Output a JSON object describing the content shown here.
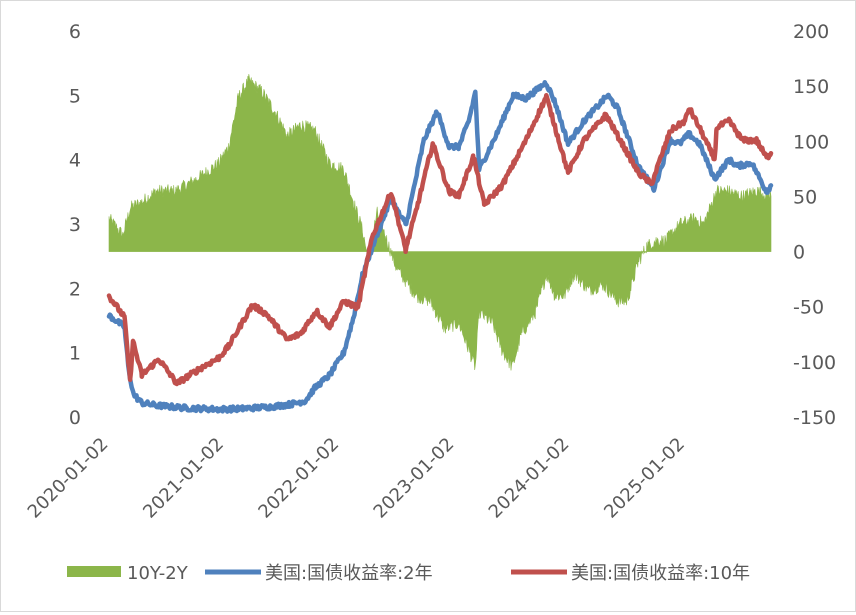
{
  "chart_data": {
    "type": "line",
    "x_ticks": [
      "2020-01-02",
      "2021-01-02",
      "2022-01-02",
      "2023-01-02",
      "2024-01-02",
      "2025-01-02"
    ],
    "x_range": [
      "2020-01-02",
      "2025-09-30"
    ],
    "y_left": {
      "min": 0,
      "max": 6,
      "ticks": [
        "0",
        "1",
        "2",
        "3",
        "4",
        "5",
        "6"
      ]
    },
    "y_right": {
      "min": -150,
      "max": 200,
      "ticks": [
        "-150",
        "-100",
        "-50",
        "0",
        "50",
        "100",
        "150",
        "200"
      ]
    },
    "grid": false,
    "legend_position": "bottom",
    "series": [
      {
        "name": "10Y-2Y",
        "type": "area",
        "axis": "right",
        "color": "#8cb64a",
        "points": [
          [
            "2020-01-02",
            30
          ],
          [
            "2020-02-15",
            15
          ],
          [
            "2020-03-10",
            40
          ],
          [
            "2020-04-15",
            45
          ],
          [
            "2020-06-01",
            55
          ],
          [
            "2020-08-01",
            55
          ],
          [
            "2020-10-01",
            65
          ],
          [
            "2020-12-15",
            80
          ],
          [
            "2021-01-15",
            95
          ],
          [
            "2021-02-15",
            140
          ],
          [
            "2021-03-20",
            155
          ],
          [
            "2021-05-01",
            145
          ],
          [
            "2021-06-15",
            125
          ],
          [
            "2021-07-20",
            105
          ],
          [
            "2021-09-01",
            115
          ],
          [
            "2021-10-15",
            110
          ],
          [
            "2021-12-01",
            80
          ],
          [
            "2022-01-15",
            75
          ],
          [
            "2022-02-15",
            45
          ],
          [
            "2022-03-15",
            20
          ],
          [
            "2022-04-01",
            -5
          ],
          [
            "2022-05-01",
            35
          ],
          [
            "2022-06-01",
            10
          ],
          [
            "2022-07-01",
            -15
          ],
          [
            "2022-09-01",
            -40
          ],
          [
            "2022-10-15",
            -45
          ],
          [
            "2022-12-01",
            -70
          ],
          [
            "2023-01-15",
            -65
          ],
          [
            "2023-03-08",
            -105
          ],
          [
            "2023-03-20",
            -55
          ],
          [
            "2023-05-01",
            -65
          ],
          [
            "2023-06-01",
            -90
          ],
          [
            "2023-07-03",
            -105
          ],
          [
            "2023-08-01",
            -75
          ],
          [
            "2023-09-15",
            -55
          ],
          [
            "2023-10-20",
            -20
          ],
          [
            "2023-11-15",
            -40
          ],
          [
            "2023-12-15",
            -40
          ],
          [
            "2024-01-15",
            -20
          ],
          [
            "2024-03-01",
            -35
          ],
          [
            "2024-04-15",
            -30
          ],
          [
            "2024-06-01",
            -45
          ],
          [
            "2024-07-01",
            -45
          ],
          [
            "2024-08-05",
            -10
          ],
          [
            "2024-09-01",
            5
          ],
          [
            "2024-10-01",
            10
          ],
          [
            "2024-11-01",
            10
          ],
          [
            "2024-12-15",
            25
          ],
          [
            "2025-02-01",
            30
          ],
          [
            "2025-03-01",
            25
          ],
          [
            "2025-04-10",
            55
          ],
          [
            "2025-05-15",
            55
          ],
          [
            "2025-07-01",
            50
          ],
          [
            "2025-08-15",
            55
          ],
          [
            "2025-09-30",
            50
          ]
        ]
      },
      {
        "name": "美国:国债收益率:2年",
        "type": "line",
        "axis": "left",
        "color": "#4f81bd",
        "points": [
          [
            "2020-01-02",
            1.58
          ],
          [
            "2020-02-20",
            1.4
          ],
          [
            "2020-03-05",
            0.7
          ],
          [
            "2020-03-20",
            0.35
          ],
          [
            "2020-04-15",
            0.22
          ],
          [
            "2020-06-01",
            0.18
          ],
          [
            "2020-09-01",
            0.14
          ],
          [
            "2020-12-15",
            0.12
          ],
          [
            "2021-03-01",
            0.13
          ],
          [
            "2021-06-01",
            0.16
          ],
          [
            "2021-08-01",
            0.2
          ],
          [
            "2021-09-15",
            0.25
          ],
          [
            "2021-10-15",
            0.45
          ],
          [
            "2021-12-01",
            0.65
          ],
          [
            "2022-01-15",
            1.0
          ],
          [
            "2022-02-15",
            1.55
          ],
          [
            "2022-03-15",
            2.2
          ],
          [
            "2022-04-20",
            2.7
          ],
          [
            "2022-06-14",
            3.4
          ],
          [
            "2022-07-15",
            3.1
          ],
          [
            "2022-08-01",
            3.0
          ],
          [
            "2022-09-26",
            4.3
          ],
          [
            "2022-11-07",
            4.75
          ],
          [
            "2022-12-15",
            4.2
          ],
          [
            "2023-01-15",
            4.2
          ],
          [
            "2023-02-15",
            4.6
          ],
          [
            "2023-03-08",
            5.05
          ],
          [
            "2023-03-20",
            3.85
          ],
          [
            "2023-04-15",
            4.1
          ],
          [
            "2023-05-15",
            4.4
          ],
          [
            "2023-07-06",
            5.0
          ],
          [
            "2023-08-15",
            4.95
          ],
          [
            "2023-10-18",
            5.2
          ],
          [
            "2023-11-15",
            4.9
          ],
          [
            "2023-12-27",
            4.25
          ],
          [
            "2024-02-15",
            4.6
          ],
          [
            "2024-04-30",
            5.0
          ],
          [
            "2024-06-01",
            4.8
          ],
          [
            "2024-08-05",
            3.9
          ],
          [
            "2024-09-24",
            3.55
          ],
          [
            "2024-11-15",
            4.3
          ],
          [
            "2024-12-15",
            4.25
          ],
          [
            "2025-01-13",
            4.4
          ],
          [
            "2025-02-15",
            4.25
          ],
          [
            "2025-04-04",
            3.7
          ],
          [
            "2025-05-20",
            4.0
          ],
          [
            "2025-06-15",
            3.9
          ],
          [
            "2025-07-31",
            3.95
          ],
          [
            "2025-09-16",
            3.5
          ],
          [
            "2025-09-30",
            3.6
          ]
        ]
      },
      {
        "name": "美国:国债收益率:10年",
        "type": "line",
        "axis": "left",
        "color": "#c0504d",
        "points": [
          [
            "2020-01-02",
            1.88
          ],
          [
            "2020-02-20",
            1.55
          ],
          [
            "2020-03-09",
            0.55
          ],
          [
            "2020-03-18",
            1.18
          ],
          [
            "2020-04-15",
            0.65
          ],
          [
            "2020-06-08",
            0.9
          ],
          [
            "2020-08-04",
            0.52
          ],
          [
            "2020-10-15",
            0.75
          ],
          [
            "2020-12-15",
            0.92
          ],
          [
            "2021-01-15",
            1.1
          ],
          [
            "2021-03-31",
            1.74
          ],
          [
            "2021-05-15",
            1.6
          ],
          [
            "2021-07-20",
            1.2
          ],
          [
            "2021-09-01",
            1.3
          ],
          [
            "2021-10-20",
            1.65
          ],
          [
            "2021-12-01",
            1.4
          ],
          [
            "2022-01-15",
            1.8
          ],
          [
            "2022-03-01",
            1.7
          ],
          [
            "2022-04-15",
            2.8
          ],
          [
            "2022-06-14",
            3.5
          ],
          [
            "2022-07-30",
            2.6
          ],
          [
            "2022-09-01",
            3.2
          ],
          [
            "2022-10-24",
            4.25
          ],
          [
            "2022-12-15",
            3.5
          ],
          [
            "2023-01-15",
            3.45
          ],
          [
            "2023-03-02",
            4.05
          ],
          [
            "2023-04-05",
            3.3
          ],
          [
            "2023-06-01",
            3.6
          ],
          [
            "2023-08-15",
            4.3
          ],
          [
            "2023-10-19",
            4.98
          ],
          [
            "2023-12-27",
            3.8
          ],
          [
            "2024-02-15",
            4.3
          ],
          [
            "2024-04-25",
            4.7
          ],
          [
            "2024-06-15",
            4.25
          ],
          [
            "2024-08-05",
            3.8
          ],
          [
            "2024-09-16",
            3.62
          ],
          [
            "2024-11-15",
            4.45
          ],
          [
            "2024-12-31",
            4.6
          ],
          [
            "2025-01-14",
            4.8
          ],
          [
            "2025-02-15",
            4.5
          ],
          [
            "2025-04-04",
            4.0
          ],
          [
            "2025-04-11",
            4.5
          ],
          [
            "2025-05-21",
            4.6
          ],
          [
            "2025-07-01",
            4.3
          ],
          [
            "2025-08-15",
            4.3
          ],
          [
            "2025-09-16",
            4.03
          ],
          [
            "2025-09-30",
            4.1
          ]
        ]
      }
    ]
  }
}
